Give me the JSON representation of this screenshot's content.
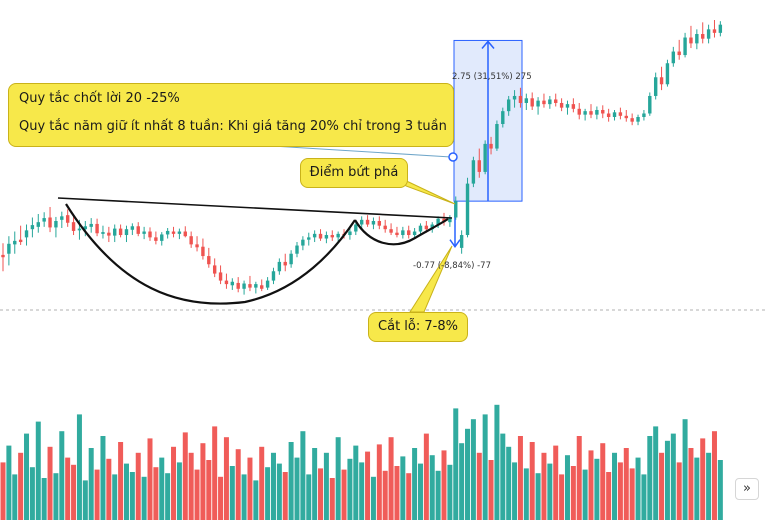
{
  "chart_data": {
    "type": "candlestick",
    "annotations": {
      "rules": [
        "Quy tắc chốt lời 20 -25%",
        "Quy tắc năm giữ ít nhất 8 tuần: Khi giá tăng 20% chỉ trong 3 tuần"
      ],
      "breakout": "Điểm bứt phá",
      "stop_loss": "Cắt lỗ: 7-8%"
    },
    "measure_up": {
      "label": "2.75 (31,51%) 275",
      "change": 2.75,
      "percent": 31.51,
      "ticks": 275
    },
    "measure_down": {
      "label": "-0.77 (-8,84%) -77",
      "change": -0.77,
      "percent": -8.84,
      "ticks": -77
    },
    "colors": {
      "up": "#26a69a",
      "down": "#ef5350",
      "measure": "#2962ff",
      "measure_fill": "#d7e3fb",
      "callout": "#f7e84a",
      "pattern": "#111111"
    },
    "candles": [
      {
        "o": 8.58,
        "h": 8.78,
        "l": 8.3,
        "c": 8.54,
        "v": 480
      },
      {
        "o": 8.6,
        "h": 8.9,
        "l": 8.4,
        "c": 8.77,
        "v": 620
      },
      {
        "o": 8.76,
        "h": 8.98,
        "l": 8.6,
        "c": 8.82,
        "v": 380
      },
      {
        "o": 8.84,
        "h": 9.08,
        "l": 8.75,
        "c": 8.8,
        "v": 560
      },
      {
        "o": 8.88,
        "h": 9.1,
        "l": 8.74,
        "c": 9.0,
        "v": 720
      },
      {
        "o": 9.02,
        "h": 9.22,
        "l": 8.88,
        "c": 9.09,
        "v": 440
      },
      {
        "o": 9.06,
        "h": 9.28,
        "l": 8.96,
        "c": 9.14,
        "v": 820
      },
      {
        "o": 9.15,
        "h": 9.31,
        "l": 9.06,
        "c": 9.21,
        "v": 350
      },
      {
        "o": 9.22,
        "h": 9.4,
        "l": 8.97,
        "c": 9.05,
        "v": 610
      },
      {
        "o": 9.05,
        "h": 9.23,
        "l": 8.88,
        "c": 9.16,
        "v": 390
      },
      {
        "o": 9.18,
        "h": 9.32,
        "l": 9.04,
        "c": 9.24,
        "v": 740
      },
      {
        "o": 9.26,
        "h": 9.36,
        "l": 9.06,
        "c": 9.13,
        "v": 520
      },
      {
        "o": 9.14,
        "h": 9.27,
        "l": 8.92,
        "c": 8.99,
        "v": 460
      },
      {
        "o": 9.0,
        "h": 9.18,
        "l": 8.84,
        "c": 9.03,
        "v": 880
      },
      {
        "o": 9.02,
        "h": 9.16,
        "l": 8.9,
        "c": 9.07,
        "v": 330
      },
      {
        "o": 9.06,
        "h": 9.21,
        "l": 8.96,
        "c": 9.11,
        "v": 600
      },
      {
        "o": 9.11,
        "h": 9.2,
        "l": 8.9,
        "c": 8.95,
        "v": 420
      },
      {
        "o": 8.94,
        "h": 9.08,
        "l": 8.86,
        "c": 8.97,
        "v": 700
      },
      {
        "o": 8.96,
        "h": 9.06,
        "l": 8.8,
        "c": 8.91,
        "v": 510
      },
      {
        "o": 8.91,
        "h": 9.1,
        "l": 8.8,
        "c": 9.03,
        "v": 380
      },
      {
        "o": 9.03,
        "h": 9.1,
        "l": 8.88,
        "c": 8.92,
        "v": 650
      },
      {
        "o": 8.92,
        "h": 9.08,
        "l": 8.8,
        "c": 9.02,
        "v": 470
      },
      {
        "o": 9.01,
        "h": 9.12,
        "l": 8.92,
        "c": 9.07,
        "v": 400
      },
      {
        "o": 9.07,
        "h": 9.14,
        "l": 8.9,
        "c": 8.94,
        "v": 560
      },
      {
        "o": 8.94,
        "h": 9.06,
        "l": 8.85,
        "c": 8.98,
        "v": 360
      },
      {
        "o": 8.98,
        "h": 9.05,
        "l": 8.82,
        "c": 8.88,
        "v": 680
      },
      {
        "o": 8.88,
        "h": 8.98,
        "l": 8.76,
        "c": 8.82,
        "v": 440
      },
      {
        "o": 8.82,
        "h": 8.97,
        "l": 8.74,
        "c": 8.93,
        "v": 520
      },
      {
        "o": 8.93,
        "h": 9.04,
        "l": 8.86,
        "c": 8.99,
        "v": 390
      },
      {
        "o": 8.98,
        "h": 9.06,
        "l": 8.88,
        "c": 8.94,
        "v": 610
      },
      {
        "o": 8.94,
        "h": 9.03,
        "l": 8.85,
        "c": 8.98,
        "v": 480
      },
      {
        "o": 8.98,
        "h": 9.07,
        "l": 8.88,
        "c": 8.9,
        "v": 730
      },
      {
        "o": 8.9,
        "h": 8.98,
        "l": 8.7,
        "c": 8.76,
        "v": 560
      },
      {
        "o": 8.76,
        "h": 8.9,
        "l": 8.64,
        "c": 8.71,
        "v": 420
      },
      {
        "o": 8.72,
        "h": 8.86,
        "l": 8.5,
        "c": 8.56,
        "v": 640
      },
      {
        "o": 8.56,
        "h": 8.7,
        "l": 8.36,
        "c": 8.42,
        "v": 500
      },
      {
        "o": 8.4,
        "h": 8.52,
        "l": 8.2,
        "c": 8.26,
        "v": 780
      },
      {
        "o": 8.28,
        "h": 8.4,
        "l": 8.08,
        "c": 8.14,
        "v": 360
      },
      {
        "o": 8.14,
        "h": 8.26,
        "l": 8.0,
        "c": 8.08,
        "v": 690
      },
      {
        "o": 8.06,
        "h": 8.18,
        "l": 7.98,
        "c": 8.12,
        "v": 450
      },
      {
        "o": 8.1,
        "h": 8.2,
        "l": 7.94,
        "c": 8.0,
        "v": 590
      },
      {
        "o": 8.0,
        "h": 8.14,
        "l": 7.9,
        "c": 8.09,
        "v": 380
      },
      {
        "o": 8.08,
        "h": 8.22,
        "l": 7.96,
        "c": 8.02,
        "v": 520
      },
      {
        "o": 8.02,
        "h": 8.12,
        "l": 7.92,
        "c": 8.08,
        "v": 330
      },
      {
        "o": 8.06,
        "h": 8.16,
        "l": 7.96,
        "c": 8.0,
        "v": 610
      },
      {
        "o": 8.02,
        "h": 8.2,
        "l": 7.98,
        "c": 8.14,
        "v": 440
      },
      {
        "o": 8.14,
        "h": 8.36,
        "l": 8.08,
        "c": 8.3,
        "v": 560
      },
      {
        "o": 8.3,
        "h": 8.52,
        "l": 8.24,
        "c": 8.46,
        "v": 470
      },
      {
        "o": 8.46,
        "h": 8.6,
        "l": 8.3,
        "c": 8.4,
        "v": 400
      },
      {
        "o": 8.42,
        "h": 8.66,
        "l": 8.36,
        "c": 8.6,
        "v": 650
      },
      {
        "o": 8.6,
        "h": 8.8,
        "l": 8.54,
        "c": 8.74,
        "v": 520
      },
      {
        "o": 8.74,
        "h": 8.9,
        "l": 8.66,
        "c": 8.84,
        "v": 740
      },
      {
        "o": 8.84,
        "h": 8.96,
        "l": 8.74,
        "c": 8.88,
        "v": 380
      },
      {
        "o": 8.88,
        "h": 9.0,
        "l": 8.8,
        "c": 8.94,
        "v": 600
      },
      {
        "o": 8.94,
        "h": 9.02,
        "l": 8.82,
        "c": 8.86,
        "v": 430
      },
      {
        "o": 8.86,
        "h": 8.98,
        "l": 8.78,
        "c": 8.92,
        "v": 560
      },
      {
        "o": 8.92,
        "h": 9.0,
        "l": 8.82,
        "c": 8.88,
        "v": 350
      },
      {
        "o": 8.88,
        "h": 8.98,
        "l": 8.8,
        "c": 8.94,
        "v": 690
      },
      {
        "o": 8.94,
        "h": 9.02,
        "l": 8.86,
        "c": 8.92,
        "v": 420
      },
      {
        "o": 8.92,
        "h": 9.04,
        "l": 8.84,
        "c": 8.98,
        "v": 510
      },
      {
        "o": 8.98,
        "h": 9.16,
        "l": 8.92,
        "c": 9.1,
        "v": 620
      },
      {
        "o": 9.1,
        "h": 9.24,
        "l": 9.02,
        "c": 9.18,
        "v": 480
      },
      {
        "o": 9.18,
        "h": 9.26,
        "l": 9.06,
        "c": 9.1,
        "v": 570
      },
      {
        "o": 9.1,
        "h": 9.22,
        "l": 9.02,
        "c": 9.16,
        "v": 360
      },
      {
        "o": 9.16,
        "h": 9.24,
        "l": 9.02,
        "c": 9.08,
        "v": 630
      },
      {
        "o": 9.08,
        "h": 9.18,
        "l": 8.96,
        "c": 9.02,
        "v": 410
      },
      {
        "o": 9.02,
        "h": 9.12,
        "l": 8.92,
        "c": 8.96,
        "v": 690
      },
      {
        "o": 8.96,
        "h": 9.06,
        "l": 8.88,
        "c": 8.92,
        "v": 450
      },
      {
        "o": 8.92,
        "h": 9.06,
        "l": 8.86,
        "c": 9.0,
        "v": 530
      },
      {
        "o": 9.0,
        "h": 9.08,
        "l": 8.86,
        "c": 8.92,
        "v": 390
      },
      {
        "o": 8.92,
        "h": 9.04,
        "l": 8.86,
        "c": 8.98,
        "v": 600
      },
      {
        "o": 8.98,
        "h": 9.12,
        "l": 8.92,
        "c": 9.08,
        "v": 470
      },
      {
        "o": 9.08,
        "h": 9.16,
        "l": 8.96,
        "c": 9.02,
        "v": 720
      },
      {
        "o": 9.02,
        "h": 9.14,
        "l": 8.96,
        "c": 9.1,
        "v": 540
      },
      {
        "o": 9.1,
        "h": 9.24,
        "l": 9.04,
        "c": 9.2,
        "v": 410
      },
      {
        "o": 9.2,
        "h": 9.3,
        "l": 9.08,
        "c": 9.14,
        "v": 580
      },
      {
        "o": 9.14,
        "h": 9.26,
        "l": 9.06,
        "c": 9.22,
        "v": 460
      },
      {
        "o": 9.22,
        "h": 9.58,
        "l": 9.18,
        "c": 9.5,
        "v": 930
      },
      {
        "o": 8.7,
        "h": 9.0,
        "l": 8.6,
        "c": 8.92,
        "v": 640
      },
      {
        "o": 8.92,
        "h": 9.9,
        "l": 8.88,
        "c": 9.8,
        "v": 760
      },
      {
        "o": 9.8,
        "h": 10.26,
        "l": 9.74,
        "c": 10.2,
        "v": 840
      },
      {
        "o": 10.2,
        "h": 10.4,
        "l": 9.9,
        "c": 10.0,
        "v": 560
      },
      {
        "o": 10.0,
        "h": 10.54,
        "l": 9.96,
        "c": 10.48,
        "v": 880
      },
      {
        "o": 10.48,
        "h": 10.6,
        "l": 10.3,
        "c": 10.4,
        "v": 500
      },
      {
        "o": 10.4,
        "h": 10.88,
        "l": 10.36,
        "c": 10.82,
        "v": 960
      },
      {
        "o": 10.82,
        "h": 11.1,
        "l": 10.76,
        "c": 11.04,
        "v": 720
      },
      {
        "o": 11.04,
        "h": 11.3,
        "l": 10.96,
        "c": 11.24,
        "v": 610
      },
      {
        "o": 11.24,
        "h": 11.4,
        "l": 11.1,
        "c": 11.3,
        "v": 480
      },
      {
        "o": 11.3,
        "h": 11.44,
        "l": 11.1,
        "c": 11.18,
        "v": 700
      },
      {
        "o": 11.18,
        "h": 11.34,
        "l": 11.06,
        "c": 11.26,
        "v": 430
      },
      {
        "o": 11.26,
        "h": 11.36,
        "l": 11.06,
        "c": 11.12,
        "v": 650
      },
      {
        "o": 11.12,
        "h": 11.28,
        "l": 10.98,
        "c": 11.22,
        "v": 390
      },
      {
        "o": 11.22,
        "h": 11.34,
        "l": 11.1,
        "c": 11.16,
        "v": 560
      },
      {
        "o": 11.16,
        "h": 11.3,
        "l": 11.08,
        "c": 11.24,
        "v": 470
      },
      {
        "o": 11.24,
        "h": 11.34,
        "l": 11.12,
        "c": 11.18,
        "v": 620
      },
      {
        "o": 11.18,
        "h": 11.26,
        "l": 11.04,
        "c": 11.1,
        "v": 380
      },
      {
        "o": 11.1,
        "h": 11.22,
        "l": 10.98,
        "c": 11.16,
        "v": 540
      },
      {
        "o": 11.16,
        "h": 11.26,
        "l": 11.02,
        "c": 11.08,
        "v": 450
      },
      {
        "o": 11.08,
        "h": 11.18,
        "l": 10.9,
        "c": 10.98,
        "v": 700
      },
      {
        "o": 10.98,
        "h": 11.08,
        "l": 10.88,
        "c": 11.04,
        "v": 420
      },
      {
        "o": 11.04,
        "h": 11.16,
        "l": 10.92,
        "c": 10.98,
        "v": 580
      },
      {
        "o": 10.98,
        "h": 11.12,
        "l": 10.9,
        "c": 11.06,
        "v": 510
      },
      {
        "o": 11.06,
        "h": 11.14,
        "l": 10.92,
        "c": 11.0,
        "v": 640
      },
      {
        "o": 11.0,
        "h": 11.08,
        "l": 10.86,
        "c": 10.94,
        "v": 400
      },
      {
        "o": 10.94,
        "h": 11.06,
        "l": 10.88,
        "c": 11.02,
        "v": 560
      },
      {
        "o": 11.02,
        "h": 11.1,
        "l": 10.9,
        "c": 10.96,
        "v": 480
      },
      {
        "o": 10.96,
        "h": 11.06,
        "l": 10.86,
        "c": 10.92,
        "v": 600
      },
      {
        "o": 10.92,
        "h": 11.0,
        "l": 10.8,
        "c": 10.86,
        "v": 430
      },
      {
        "o": 10.86,
        "h": 10.98,
        "l": 10.8,
        "c": 10.94,
        "v": 520
      },
      {
        "o": 10.94,
        "h": 11.06,
        "l": 10.88,
        "c": 11.0,
        "v": 380
      },
      {
        "o": 11.0,
        "h": 11.36,
        "l": 10.96,
        "c": 11.3,
        "v": 700
      },
      {
        "o": 11.3,
        "h": 11.7,
        "l": 11.24,
        "c": 11.62,
        "v": 780
      },
      {
        "o": 11.62,
        "h": 11.8,
        "l": 11.4,
        "c": 11.5,
        "v": 560
      },
      {
        "o": 11.5,
        "h": 11.92,
        "l": 11.46,
        "c": 11.86,
        "v": 660
      },
      {
        "o": 11.86,
        "h": 12.14,
        "l": 11.8,
        "c": 12.06,
        "v": 720
      },
      {
        "o": 12.06,
        "h": 12.26,
        "l": 11.92,
        "c": 12.0,
        "v": 480
      },
      {
        "o": 12.0,
        "h": 12.38,
        "l": 11.96,
        "c": 12.3,
        "v": 840
      },
      {
        "o": 12.3,
        "h": 12.5,
        "l": 12.12,
        "c": 12.2,
        "v": 600
      },
      {
        "o": 12.2,
        "h": 12.44,
        "l": 12.1,
        "c": 12.36,
        "v": 520
      },
      {
        "o": 12.36,
        "h": 12.56,
        "l": 12.2,
        "c": 12.28,
        "v": 680
      },
      {
        "o": 12.28,
        "h": 12.52,
        "l": 12.2,
        "c": 12.44,
        "v": 560
      },
      {
        "o": 12.44,
        "h": 12.6,
        "l": 12.3,
        "c": 12.38,
        "v": 740
      },
      {
        "o": 12.38,
        "h": 12.58,
        "l": 12.32,
        "c": 12.52,
        "v": 500
      }
    ]
  },
  "ui": {
    "scroll_button": "»"
  }
}
